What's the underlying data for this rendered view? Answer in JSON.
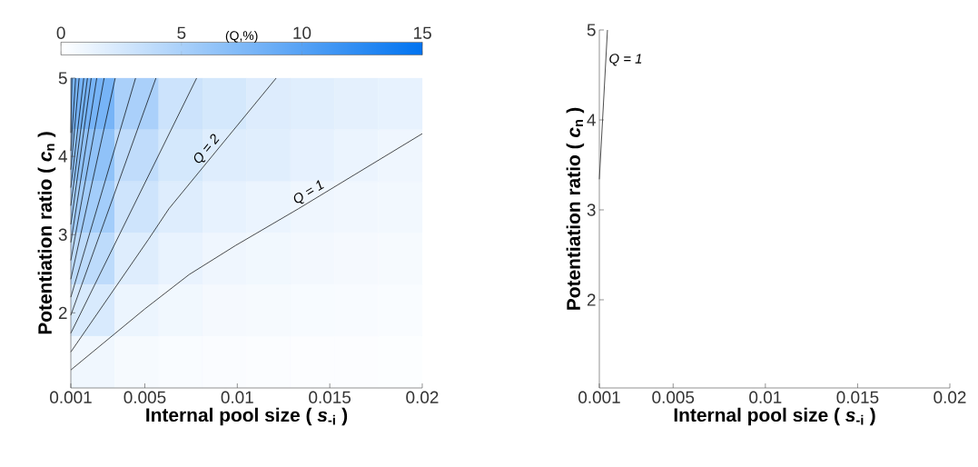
{
  "chart_data": [
    {
      "type": "heatmap",
      "clabel": "(Q,%)",
      "clim": [
        0,
        15
      ],
      "cticks": [
        0,
        5,
        10,
        15
      ],
      "categories": [
        null,
        null,
        null,
        null,
        null,
        null,
        null,
        null
      ],
      "y_categories": [
        null,
        null,
        null,
        null,
        null,
        null
      ],
      "cells": [
        [
          8,
          5,
          3,
          2.5,
          2,
          1.8,
          1.6,
          1.4
        ],
        [
          6.5,
          3.7,
          2.5,
          1.95,
          1.8,
          1.5,
          1.2,
          0.95
        ],
        [
          5.4,
          2.9,
          1.95,
          1.4,
          1.2,
          0.95,
          0.85,
          0.75
        ],
        [
          3.9,
          1.95,
          1.3,
          0.95,
          0.8,
          0.7,
          0.6,
          0.55
        ],
        [
          2.3,
          1.1,
          0.8,
          0.6,
          0.5,
          0.45,
          0.4,
          0.35
        ],
        [
          0.9,
          0.5,
          0.35,
          0.3,
          0.25,
          0.2,
          0.2,
          0.15
        ]
      ]
    },
    {
      "type": "line",
      "xlabel": "Internal pool size ( *s*$_{-i}$ )",
      "ylabel": "Potentiation ratio ( *c*$_{n}$ )",
      "xlim": [
        0.001,
        0.02
      ],
      "xticks": [
        0.001,
        0.005,
        0.01,
        0.015,
        0.02
      ],
      "ylim": [
        1.04,
        5
      ],
      "yticks": [
        2,
        3,
        4,
        5
      ],
      "series": [
        {
          "name": "Q = 1",
          "color": "#000000",
          "x": [
            0.001,
            0.005,
            0.0074,
            0.0099,
            0.0133,
            0.02
          ],
          "values": [
            1.27,
            2.05,
            2.49,
            2.86,
            3.33,
            4.29
          ]
        },
        {
          "name": "Q = 2",
          "color": "#000000",
          "x": [
            0.001,
            0.0052,
            0.0063,
            0.0121
          ],
          "values": [
            1.5,
            2.94,
            3.33,
            5
          ]
        },
        {
          "color": "#000000",
          "x": [
            0.001,
            0.0078
          ],
          "values": [
            1.74,
            5
          ]
        },
        {
          "color": "#000000",
          "x": [
            0.001,
            0.0056
          ],
          "values": [
            1.97,
            5
          ]
        },
        {
          "color": "#000000",
          "x": [
            0.001,
            0.0045
          ],
          "values": [
            2.2,
            5
          ]
        },
        {
          "color": "#000000",
          "x": [
            0.001,
            0.0034
          ],
          "values": [
            2.43,
            5
          ]
        },
        {
          "color": "#000000",
          "x": [
            0.001,
            0.0028
          ],
          "values": [
            2.67,
            5
          ]
        },
        {
          "color": "#000000",
          "x": [
            0.001,
            0.0024
          ],
          "values": [
            2.9,
            5
          ]
        },
        {
          "color": "#000000",
          "x": [
            0.001,
            0.0021
          ],
          "values": [
            3.13,
            5
          ]
        },
        {
          "color": "#000000",
          "x": [
            0.001,
            0.0019
          ],
          "values": [
            3.37,
            5
          ]
        },
        {
          "color": "#000000",
          "x": [
            0.001,
            0.0017
          ],
          "values": [
            3.6,
            5
          ]
        },
        {
          "color": "#000000",
          "x": [
            0.001,
            0.00145
          ],
          "values": [
            3.83,
            5
          ]
        },
        {
          "color": "#000000",
          "x": [
            0.001,
            0.00126
          ],
          "values": [
            4.07,
            5
          ]
        },
        {
          "color": "#000000",
          "x": [
            0.001,
            0.00106
          ],
          "values": [
            4.3,
            5
          ]
        }
      ]
    },
    {
      "type": "line",
      "xlabel": "Internal pool size ( *s*$_{-i}$ )",
      "ylabel": "Potentiation ratio ( *c*$_{n}$ )",
      "xlim": [
        0.001,
        0.02
      ],
      "xticks": [
        0.001,
        0.005,
        0.01,
        0.015,
        0.02
      ],
      "ylim": [
        1.02,
        5
      ],
      "yticks": [
        2,
        3,
        4,
        5
      ],
      "series": [
        {
          "name": "Q = 1",
          "color": "#000000",
          "x": [
            0.001,
            0.00144
          ],
          "values": [
            3.34,
            5
          ]
        }
      ]
    }
  ]
}
